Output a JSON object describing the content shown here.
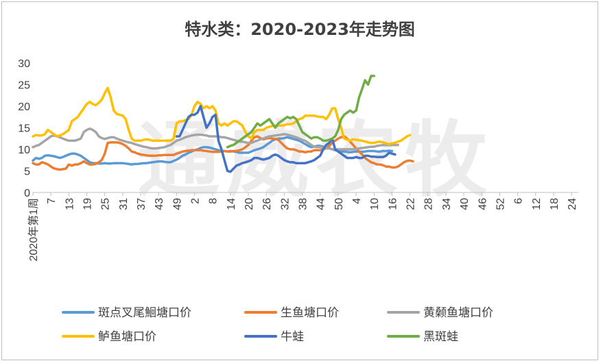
{
  "chart_data": {
    "type": "line",
    "title": "特水类：2020-2023年走势图",
    "watermark": "通威农牧",
    "ylim": [
      0,
      30
    ],
    "yticks": [
      "0",
      "5",
      "10",
      "15",
      "20",
      "25",
      "30"
    ],
    "xticks": [
      "2020年第1周",
      "7",
      "13",
      "19",
      "25",
      "31",
      "37",
      "43",
      "49",
      "2",
      "8",
      "14",
      "20",
      "26",
      "32",
      "38",
      "44",
      "50",
      "4",
      "10",
      "16",
      "22",
      "28",
      "34",
      "40",
      "46",
      "52",
      "6",
      "12",
      "18",
      "24"
    ],
    "grid": false,
    "legend_position": "bottom",
    "series": [
      {
        "name": "斑点叉尾鮰塘口价",
        "color": "#5B9BD5",
        "values": [
          7.4,
          8,
          7.8,
          8,
          8.5,
          8.6,
          8.5,
          8.4,
          8.2,
          8,
          8.2,
          8.5,
          8.8,
          9,
          9,
          8.8,
          8.5,
          8,
          7.5,
          7,
          6.8,
          6.8,
          6.7,
          6.7,
          6.8,
          6.7,
          6.7,
          6.8,
          6.8,
          6.8,
          6.8,
          6.7,
          6.6,
          6.5,
          6.6,
          6.6,
          6.7,
          6.8,
          6.8,
          6.9,
          7,
          7.1,
          7.2,
          7.2,
          7.1,
          7,
          7,
          7.3,
          7.6,
          8,
          8.5,
          8.8,
          9.2,
          9.5,
          9.8,
          10,
          10.3,
          10.5,
          10.5,
          10.4,
          10.2,
          10,
          9.8,
          9.6,
          9.6,
          9.5,
          9.6,
          9.5,
          9.4,
          9.2,
          9.2,
          9.2,
          9.2,
          9.5,
          9.8,
          10,
          10.2,
          10.5,
          11,
          11.5,
          12,
          12.3,
          12.5,
          12.5,
          12.6,
          12.8,
          12.6,
          12.4,
          12.2,
          12,
          11.6,
          11.2,
          10.8,
          10.5,
          10.6,
          10.8,
          10.8,
          10.6,
          10.5,
          10.3,
          10,
          9.8,
          9.6,
          9.5,
          9.5,
          9.4,
          9.3,
          9.4,
          9.5,
          9.5,
          9.4,
          9.5,
          9.6,
          9.6,
          9.6,
          9.5,
          9.5,
          9.6,
          9.6,
          9.7,
          9.6
        ]
      },
      {
        "name": "生鱼塘口价",
        "color": "#ED7D31",
        "values": [
          6.8,
          6.5,
          6.5,
          7,
          6.8,
          6.5,
          6,
          5.6,
          5.4,
          5.3,
          5.4,
          5.5,
          6.5,
          6.2,
          6.5,
          6.5,
          6.8,
          7.2,
          6.8,
          6.5,
          6.5,
          6.6,
          7,
          7.5,
          9,
          11.5,
          11.6,
          11.6,
          11.6,
          11.5,
          11.2,
          10.8,
          10.2,
          9.5,
          9.3,
          9,
          8.8,
          8.7,
          8.6,
          8.5,
          8.5,
          8.5,
          8.6,
          8.6,
          8.7,
          8.7,
          8.7,
          8.7,
          9,
          9.2,
          9.5,
          9.6,
          9.7,
          9.8,
          9.8,
          9.8,
          9.8,
          9.7,
          9.6,
          9.5,
          9.4,
          9.4,
          9.4,
          9.5,
          9.6,
          9.5,
          9.5,
          9.6,
          9.6,
          9.8,
          10,
          10.5,
          11,
          12,
          12.8,
          13,
          12.6,
          12.3,
          12.5,
          12.6,
          12.5,
          12.4,
          12.2,
          11.5,
          10.8,
          10.2,
          10,
          10,
          9.8,
          9.5,
          9.5,
          9.3,
          9.5,
          9.5,
          9.8,
          9.8,
          9.8,
          10,
          10.2,
          10.8,
          11.5,
          12,
          12.5,
          12.8,
          13,
          12.5,
          11.8,
          11,
          10.2,
          9.5,
          8.8,
          8,
          7.5,
          7,
          6.8,
          6.5,
          6.5,
          6.3,
          6,
          6,
          5.8,
          5.8,
          6,
          6.5,
          7,
          7.3,
          7.4,
          7.2
        ]
      },
      {
        "name": "黄颡鱼塘口价",
        "color": "#A5A5A5",
        "values": [
          10.5,
          10.8,
          11,
          11.5,
          12,
          12.5,
          13,
          13.2,
          13,
          12.8,
          12.5,
          12.2,
          12,
          12,
          12,
          12.2,
          12.5,
          14,
          14.5,
          14.8,
          14.5,
          14,
          13,
          12.6,
          12.4,
          12.6,
          12.8,
          12.8,
          12.5,
          12.2,
          12,
          11.8,
          11.6,
          11.5,
          11.2,
          11,
          10.8,
          10.6,
          10.5,
          10.3,
          10.2,
          10.2,
          10.3,
          10.4,
          10.5,
          10.8,
          11,
          11.5,
          12,
          12.2,
          12.5,
          12.8,
          13,
          13.2,
          13.3,
          13.4,
          13.4,
          13.3,
          13.2,
          13,
          13,
          13,
          13,
          12.8,
          12.8,
          12.6,
          12.4,
          12.2,
          12,
          11.8,
          11.8,
          11.6,
          11.5,
          11.5,
          11.8,
          12,
          12.3,
          12.5,
          12.8,
          13,
          13.1,
          13.2,
          13.3,
          13.4,
          13.5,
          13.4,
          13.2,
          13,
          12.8,
          12.5,
          12.2,
          12,
          11.5,
          11,
          10.6,
          10.5,
          10.5,
          10.4,
          10.2,
          10.2,
          10,
          10,
          10,
          10,
          10,
          10,
          10,
          10,
          10.1,
          10.2,
          10.3,
          10.4,
          10.5,
          10.6,
          10.6,
          10.8,
          10.9,
          11,
          11,
          11,
          11,
          11,
          11
        ]
      },
      {
        "name": "鲈鱼塘口价",
        "color": "#FFC000",
        "values": [
          13,
          13.3,
          13.2,
          13.2,
          13.5,
          14.5,
          14,
          13.5,
          13,
          13.2,
          13.5,
          14,
          14.5,
          16.5,
          17,
          17.5,
          18.5,
          19.5,
          20.5,
          21,
          20.5,
          20.2,
          20.8,
          21.5,
          23,
          24.2,
          22,
          19,
          18.2,
          18,
          17.8,
          17,
          14.5,
          12.5,
          12,
          12,
          12,
          12.2,
          12.3,
          12.2,
          12,
          12,
          12,
          12,
          12,
          12,
          12,
          12.5,
          16,
          16.5,
          16.5,
          16.8,
          17,
          18,
          20,
          21,
          20.5,
          19.5,
          20,
          19.5,
          20,
          19,
          16,
          15.5,
          16,
          15.5,
          16,
          16.5,
          16.5,
          16,
          15.5,
          14,
          13,
          12.5,
          14,
          14.5,
          14.5,
          14.5,
          15,
          15.2,
          15.4,
          15.5,
          15.5,
          15.5,
          15.6,
          15.8,
          15.8,
          16,
          16.5,
          17,
          17.2,
          17.8,
          17.8,
          17.8,
          17.8,
          17.6,
          17.5,
          17.5,
          17,
          18,
          19.5,
          19.5,
          17,
          15,
          12.5,
          12.2,
          12,
          12.3,
          12.2,
          12.1,
          12,
          11.8,
          11.6,
          11.5,
          11.5,
          11.7,
          11.8,
          11.6,
          11.4,
          11.2,
          11.4,
          11.5,
          11.8,
          12,
          12.5,
          13,
          13.3
        ]
      },
      {
        "name": "牛蛙",
        "color": "#4472C4",
        "values": [
          null,
          null,
          null,
          null,
          null,
          null,
          null,
          null,
          null,
          null,
          null,
          null,
          null,
          null,
          null,
          null,
          null,
          null,
          null,
          null,
          null,
          null,
          null,
          null,
          null,
          null,
          null,
          null,
          null,
          null,
          null,
          null,
          null,
          null,
          null,
          null,
          null,
          null,
          null,
          null,
          null,
          null,
          null,
          null,
          null,
          null,
          null,
          null,
          13,
          13,
          14.5,
          16,
          17.5,
          18,
          18,
          18.5,
          20,
          17.5,
          15,
          16,
          17.5,
          18,
          12,
          10,
          7.5,
          5,
          4.8,
          5.5,
          6.2,
          6.5,
          6.8,
          7,
          7.2,
          7.5,
          8,
          8,
          7.8,
          7.6,
          7.8,
          8,
          8.5,
          8.8,
          8.5,
          8,
          7.5,
          7.2,
          7,
          7,
          6.8,
          6.8,
          6.8,
          6.8,
          7,
          7.2,
          7.5,
          8,
          8.5,
          10,
          11,
          11.5,
          12.5,
          10,
          9.5,
          9,
          8.5,
          8,
          8,
          8,
          8.2,
          8,
          8,
          8.5,
          8.5,
          8.3,
          8.3,
          8.2,
          8.2,
          8.2,
          8.5,
          9.2,
          9,
          8.8
        ]
      },
      {
        "name": "黑斑蛙",
        "color": "#70AD47",
        "values": [
          null,
          null,
          null,
          null,
          null,
          null,
          null,
          null,
          null,
          null,
          null,
          null,
          null,
          null,
          null,
          null,
          null,
          null,
          null,
          null,
          null,
          null,
          null,
          null,
          null,
          null,
          null,
          null,
          null,
          null,
          null,
          null,
          null,
          null,
          null,
          null,
          null,
          null,
          null,
          null,
          null,
          null,
          null,
          null,
          null,
          null,
          null,
          null,
          null,
          null,
          null,
          null,
          null,
          null,
          null,
          null,
          null,
          null,
          null,
          null,
          null,
          null,
          null,
          null,
          null,
          10.5,
          10.8,
          11,
          11.5,
          12,
          12.5,
          13,
          13.5,
          14,
          15,
          16,
          15.5,
          16,
          16.5,
          17,
          16,
          15,
          16,
          16.5,
          17,
          17.5,
          17.2,
          17.5,
          17,
          15.5,
          14,
          13.5,
          13,
          12.5,
          12.8,
          12.8,
          12.5,
          12,
          12,
          12.2,
          12.5,
          13,
          14.5,
          17,
          18,
          18.5,
          19,
          18.5,
          19,
          22,
          24,
          26,
          25,
          27,
          27
        ]
      }
    ]
  }
}
